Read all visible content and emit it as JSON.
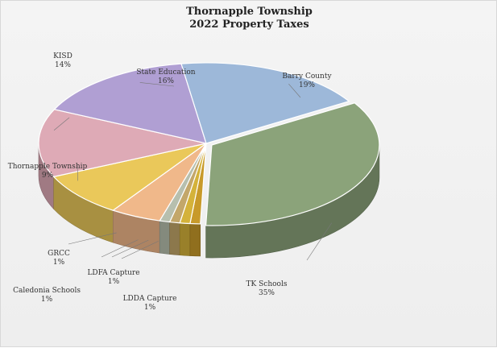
{
  "chart_data": {
    "type": "pie",
    "title": "Thornapple Township",
    "subtitle": "2022 Property Taxes",
    "slices": [
      {
        "label": "TK Schools",
        "value": 35,
        "value_label": "35%",
        "color": "#8ba37a"
      },
      {
        "label": "LDDA Capture",
        "value": 1,
        "value_label": "1%",
        "color": "#c89a2a"
      },
      {
        "label": "LDFA Capture",
        "value": 1,
        "value_label": "1%",
        "color": "#d4b23a"
      },
      {
        "label": "Caledonia Schools",
        "value": 1,
        "value_label": "1%",
        "color": "#c3a76a"
      },
      {
        "label": "GRCC",
        "value": 1,
        "value_label": "1%",
        "color": "#b7bfae"
      },
      {
        "label": "",
        "value": 5,
        "value_label": "",
        "color": "#f0b88a"
      },
      {
        "label": "Thornapple Township",
        "value": 9,
        "value_label": "9%",
        "color": "#eac85a"
      },
      {
        "label": "KISD",
        "value": 14,
        "value_label": "14%",
        "color": "#deaab6"
      },
      {
        "label": "State Education",
        "value": 16,
        "value_label": "16%",
        "color": "#b09fd3"
      },
      {
        "label": "Barry County",
        "value": 19,
        "value_label": "19%",
        "color": "#9db8d9"
      }
    ],
    "legend": "none",
    "style": "3d-exploded"
  }
}
